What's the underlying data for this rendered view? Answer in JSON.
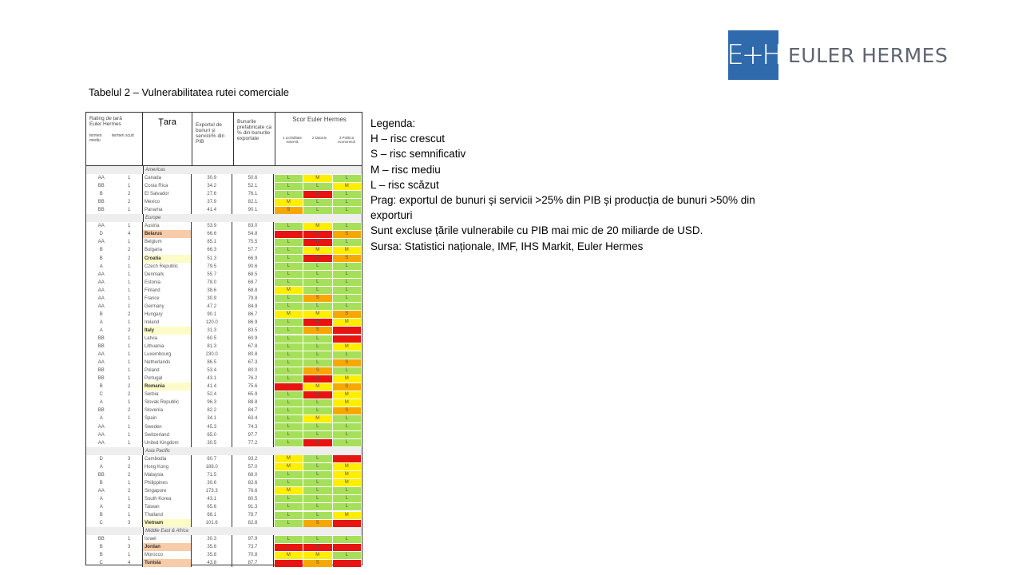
{
  "logo": {
    "mark": "EH",
    "name": "EULER HERMES",
    "color": "#2f6aad"
  },
  "caption": "Tabelul 2 – Vulnerabilitatea rutei comerciale",
  "legend": [
    "Legenda:",
    "H – risc crescut",
    "S – risc semnificativ",
    "M – risc mediu",
    "L – risc scăzut",
    "Prag: exportul de bunuri și servicii >25% din PIB și producția de bunuri >50% din exporturi",
    "Sunt excluse țările vulnerabile cu PIB mai mic de 20 miliarde de USD.",
    "Sursa: Statistici naționale, IMF, IHS Markit, Euler Hermes"
  ],
  "table": {
    "headers": {
      "rating": "Rating de țară Euler Hermes",
      "medium": "termen mediu",
      "short": "termen scurt",
      "country": "Țara",
      "export": "Exportul de bunuri și servicii% din PIB",
      "manuf": "Bunurile prefabricate ca % din bunurile exportate",
      "score": "Scor Euler Hermes",
      "s1": "1 Lichiditate externă",
      "s2": "2 Datorie",
      "s3": "3 Politica economică"
    },
    "score_colors": {
      "H": "#e8140f",
      "S": "#f7a800",
      "M": "#ffee00",
      "L": "#a6e05a"
    },
    "highlight_colors": {
      "orange": "#f8cba9",
      "yellow": "#fdfbc8"
    },
    "groups": [
      {
        "region": "Americas",
        "rows": [
          [
            "AA",
            "1",
            "Canada",
            "30.9",
            "50.6",
            "L",
            "M",
            "L",
            ""
          ],
          [
            "BB",
            "1",
            "Costa Rica",
            "34.2",
            "52.1",
            "L",
            "L",
            "M",
            ""
          ],
          [
            "B",
            "2",
            "El Salvador",
            "27.6",
            "76.1",
            "L",
            "H",
            "L",
            ""
          ],
          [
            "BB",
            "2",
            "Mexico",
            "37.9",
            "82.1",
            "M",
            "L",
            "L",
            ""
          ],
          [
            "BB",
            "1",
            "Panama",
            "41.4",
            "90.1",
            "S",
            "L",
            "L",
            ""
          ]
        ]
      },
      {
        "region": "Europe",
        "rows": [
          [
            "AA",
            "1",
            "Austria",
            "53.9",
            "83.0",
            "L",
            "M",
            "L",
            ""
          ],
          [
            "D",
            "4",
            "Belarus",
            "66.6",
            "54.8",
            "H",
            "H",
            "S",
            "orange"
          ],
          [
            "AA",
            "1",
            "Belgium",
            "85.1",
            "75.5",
            "L",
            "H",
            "L",
            ""
          ],
          [
            "B",
            "2",
            "Bulgaria",
            "66.3",
            "57.7",
            "L",
            "M",
            "M",
            ""
          ],
          [
            "B",
            "2",
            "Croatia",
            "51.3",
            "66.9",
            "L",
            "H",
            "S",
            "yellow"
          ],
          [
            "A",
            "1",
            "Czech Republic",
            "79.5",
            "90.6",
            "L",
            "L",
            "L",
            ""
          ],
          [
            "AA",
            "1",
            "Denmark",
            "55.7",
            "68.5",
            "L",
            "L",
            "L",
            ""
          ],
          [
            "AA",
            "1",
            "Estonia",
            "78.0",
            "68.7",
            "L",
            "L",
            "L",
            ""
          ],
          [
            "AA",
            "1",
            "Finland",
            "38.6",
            "68.8",
            "M",
            "L",
            "L",
            ""
          ],
          [
            "AA",
            "1",
            "France",
            "30.9",
            "79.8",
            "L",
            "S",
            "L",
            ""
          ],
          [
            "AA",
            "1",
            "Germany",
            "47.2",
            "84.9",
            "L",
            "L",
            "L",
            ""
          ],
          [
            "B",
            "2",
            "Hungary",
            "90.1",
            "86.7",
            "M",
            "M",
            "S",
            ""
          ],
          [
            "A",
            "1",
            "Ireland",
            "120.0",
            "86.9",
            "L",
            "H",
            "M",
            ""
          ],
          [
            "A",
            "2",
            "Italy",
            "31.3",
            "83.5",
            "L",
            "S",
            "H",
            "yellow"
          ],
          [
            "BB",
            "1",
            "Latvia",
            "60.5",
            "60.9",
            "L",
            "L",
            "H",
            ""
          ],
          [
            "BB",
            "1",
            "Lithuania",
            "81.3",
            "67.8",
            "L",
            "L",
            "M",
            ""
          ],
          [
            "AA",
            "1",
            "Luxembourg",
            "230.0",
            "80.8",
            "L",
            "L",
            "L",
            ""
          ],
          [
            "AA",
            "1",
            "Netherlands",
            "86.5",
            "67.3",
            "L",
            "L",
            "S",
            ""
          ],
          [
            "BB",
            "1",
            "Poland",
            "53.4",
            "80.0",
            "L",
            "S",
            "L",
            ""
          ],
          [
            "BB",
            "1",
            "Portugal",
            "43.1",
            "76.2",
            "L",
            "H",
            "M",
            ""
          ],
          [
            "B",
            "2",
            "Romania",
            "41.4",
            "75.6",
            "H",
            "M",
            "S",
            "yellow"
          ],
          [
            "C",
            "2",
            "Serbia",
            "52.4",
            "65.9",
            "L",
            "H",
            "M",
            ""
          ],
          [
            "A",
            "1",
            "Slovak Republic",
            "96.3",
            "88.8",
            "L",
            "L",
            "M",
            ""
          ],
          [
            "BB",
            "2",
            "Slovenia",
            "82.2",
            "84.7",
            "L",
            "L",
            "S",
            ""
          ],
          [
            "A",
            "1",
            "Spain",
            "34.1",
            "63.4",
            "L",
            "M",
            "L",
            ""
          ],
          [
            "AA",
            "1",
            "Sweden",
            "45.3",
            "74.3",
            "L",
            "L",
            "L",
            ""
          ],
          [
            "AA",
            "1",
            "Switzerland",
            "65.0",
            "97.7",
            "L",
            "L",
            "L",
            ""
          ],
          [
            "AA",
            "1",
            "United Kingdom",
            "30.5",
            "77.2",
            "L",
            "H",
            "L",
            ""
          ]
        ]
      },
      {
        "region": "Asia Pacific",
        "rows": [
          [
            "D",
            "3",
            "Cambodia",
            "60.7",
            "93.2",
            "M",
            "L",
            "H",
            ""
          ],
          [
            "A",
            "2",
            "Hong Kong",
            "188.0",
            "57.0",
            "M",
            "L",
            "M",
            ""
          ],
          [
            "BB",
            "2",
            "Malaysia",
            "71.5",
            "68.0",
            "L",
            "L",
            "M",
            ""
          ],
          [
            "B",
            "1",
            "Philippines",
            "30.6",
            "82.6",
            "L",
            "L",
            "M",
            ""
          ],
          [
            "AA",
            "2",
            "Singapore",
            "173.3",
            "76.6",
            "M",
            "L",
            "L",
            ""
          ],
          [
            "A",
            "1",
            "South Korea",
            "43.1",
            "80.5",
            "L",
            "L",
            "L",
            ""
          ],
          [
            "A",
            "2",
            "Taiwan",
            "65.6",
            "91.3",
            "L",
            "L",
            "L",
            ""
          ],
          [
            "B",
            "1",
            "Thailand",
            "68.1",
            "78.7",
            "L",
            "L",
            "M",
            ""
          ],
          [
            "C",
            "3",
            "Vietnam",
            "101.6",
            "82.8",
            "L",
            "S",
            "H",
            "yellow"
          ]
        ]
      },
      {
        "region": "Middle East & Africa",
        "rows": [
          [
            "BB",
            "1",
            "Israel",
            "30.3",
            "97.9",
            "L",
            "L",
            "L",
            ""
          ],
          [
            "B",
            "3",
            "Jordan",
            "35.6",
            "73.7",
            "H",
            "H",
            "H",
            "orange"
          ],
          [
            "B",
            "1",
            "Morocco",
            "35.8",
            "70.8",
            "M",
            "M",
            "L",
            ""
          ],
          [
            "C",
            "4",
            "Tunisia",
            "43.8",
            "87.7",
            "H",
            "S",
            "H",
            "orange"
          ]
        ]
      }
    ]
  }
}
